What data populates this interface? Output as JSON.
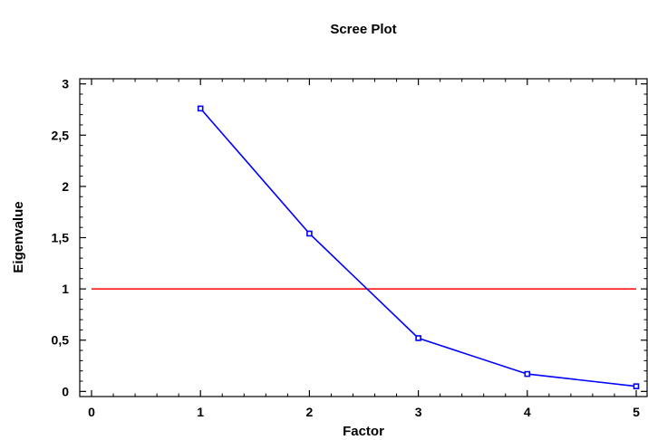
{
  "chart_data": {
    "type": "line",
    "title": "Scree Plot",
    "xlabel": "Factor",
    "ylabel": "Eigenvalue",
    "xlim": [
      0,
      5
    ],
    "ylim": [
      -0.05,
      3.05
    ],
    "x_ticks": [
      0,
      1,
      2,
      3,
      4,
      5
    ],
    "x_tick_labels": [
      "0",
      "1",
      "2",
      "3",
      "4",
      "5"
    ],
    "y_ticks": [
      0,
      0.5,
      1,
      1.5,
      2,
      2.5,
      3
    ],
    "y_tick_labels": [
      "0",
      "0,5",
      "1",
      "1,5",
      "2",
      "2,5",
      "3"
    ],
    "series": [
      {
        "x": [
          1,
          2,
          3,
          4,
          5
        ],
        "values": [
          2.76,
          1.54,
          0.52,
          0.17,
          0.05
        ]
      }
    ],
    "reference_line": {
      "y": 1
    },
    "grid": false,
    "colors": {
      "series": "#0000ff",
      "reference": "#ff0000",
      "axes": "#000000"
    }
  }
}
